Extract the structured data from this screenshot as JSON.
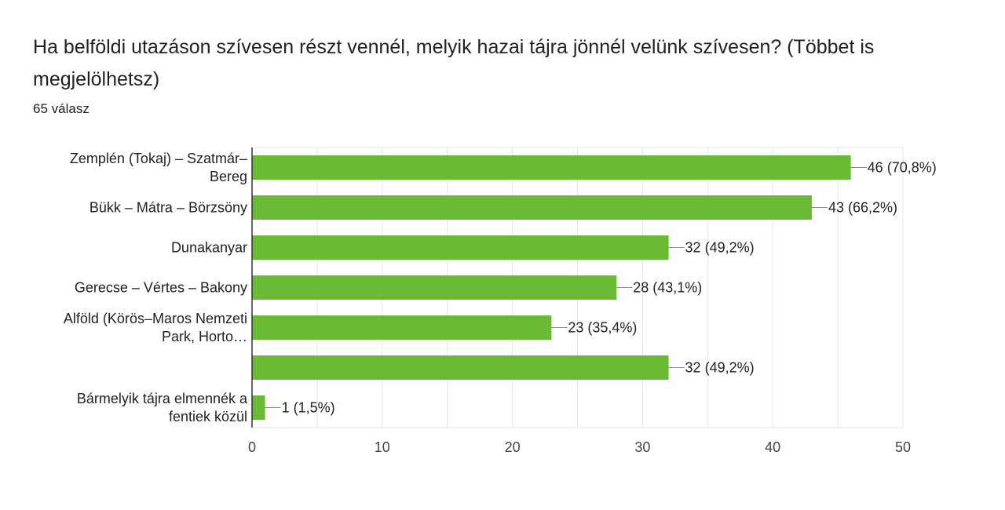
{
  "question": {
    "title": "Ha belföldi utazáson szívesen részt vennél, melyik hazai tájra jönnél velünk szívesen? (Többet is megjelölhetsz)",
    "responses": "65 válasz"
  },
  "colors": {
    "bar": "#6aba36",
    "grid": "#e6e6e6",
    "axis": "#333333"
  },
  "chart_data": {
    "type": "bar",
    "orientation": "horizontal",
    "categories": [
      [
        "Zemplén (Tokaj) – Szatmár–",
        "Bereg"
      ],
      [
        "Bükk – Mátra – Börzsöny"
      ],
      [
        "Dunakanyar"
      ],
      [
        "Gerecse – Vértes – Bakony"
      ],
      [
        "Alföld (Körös–Maros Nemzeti",
        "Park, Horto…"
      ],
      [
        ""
      ],
      [
        "Bármelyik tájra elmennék a",
        "fentiek közül"
      ]
    ],
    "values": [
      46,
      43,
      32,
      28,
      23,
      32,
      1
    ],
    "data_labels": [
      "46 (70,8%)",
      "43 (66,2%)",
      "32 (49,2%)",
      "28 (43,1%)",
      "23 (35,4%)",
      "32 (49,2%)",
      "1 (1,5%)"
    ],
    "xlim": [
      0,
      50
    ],
    "xticks": [
      0,
      10,
      20,
      30,
      40,
      50
    ],
    "xtick_labels": [
      "0",
      "10",
      "20",
      "30",
      "40",
      "50"
    ],
    "minor_grid_step": 5,
    "grid": true
  }
}
